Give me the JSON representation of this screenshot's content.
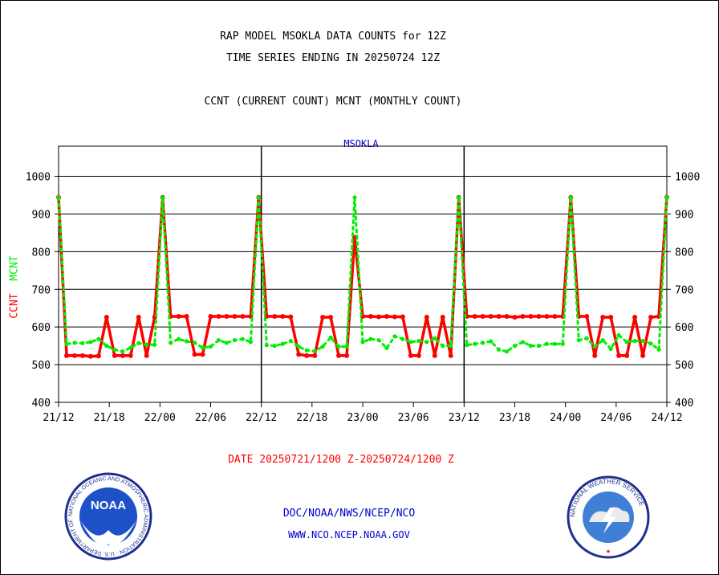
{
  "header": {
    "title_line1": "RAP MODEL MSOKLA DATA COUNTS for 12Z",
    "title_line2": "TIME SERIES ENDING IN 20250724 12Z",
    "subtitle": "CCNT (CURRENT COUNT) MCNT (MONTHLY COUNT)"
  },
  "footer": {
    "date_range": "DATE 20250721/1200 Z-20250724/1200 Z",
    "org_path": "DOC/NOAA/NWS/NCEP/NCO",
    "website": "WWW.NCO.NCEP.NOAA.GOV"
  },
  "logos": {
    "noaa_text": "NOAA",
    "noaa_ring_text": "NATIONAL OCEANIC AND ATMOSPHERIC ADMINISTRATION · U.S. DEPARTMENT OF COMMERCE",
    "nws_ring_text": "NATIONAL WEATHER SERVICE"
  },
  "colors": {
    "ccnt": "#ff0000",
    "mcnt": "#00ee00",
    "title_blue": "#0000cc",
    "grid": "#000000"
  },
  "chart_data": {
    "type": "line",
    "title": "MSOKLA",
    "ylabel_ccnt": "CCNT",
    "ylabel_mcnt": "MCNT",
    "ylim": [
      400,
      1080
    ],
    "yticks": [
      400,
      500,
      600,
      700,
      800,
      900,
      1000
    ],
    "x_tick_labels": [
      "21/12",
      "21/18",
      "22/00",
      "22/06",
      "22/12",
      "22/18",
      "23/00",
      "23/06",
      "23/12",
      "23/18",
      "24/00",
      "24/06",
      "24/12"
    ],
    "x_range_hours": [
      0,
      72
    ],
    "grid": true,
    "series": [
      {
        "name": "CCNT",
        "color": "#ff0000",
        "values": [
          944,
          524,
          524,
          524,
          522,
          523,
          626,
          524,
          524,
          524,
          626,
          524,
          626,
          944,
          628,
          628,
          628,
          527,
          527,
          628,
          628,
          628,
          628,
          628,
          628,
          944,
          628,
          628,
          628,
          627,
          527,
          524,
          524,
          626,
          626,
          524,
          524,
          838,
          628,
          628,
          627,
          628,
          627,
          627,
          524,
          524,
          626,
          524,
          626,
          524,
          944,
          628,
          628,
          628,
          628,
          628,
          628,
          626,
          628,
          628,
          628,
          628,
          628,
          628,
          944,
          628,
          628,
          524,
          626,
          626,
          524,
          524,
          626,
          524,
          626,
          628,
          944
        ]
      },
      {
        "name": "MCNT",
        "color": "#00ee00",
        "values": [
          944,
          555,
          558,
          557,
          560,
          568,
          550,
          540,
          535,
          545,
          557,
          553,
          553,
          944,
          558,
          568,
          562,
          558,
          545,
          548,
          565,
          558,
          565,
          568,
          560,
          944,
          552,
          550,
          555,
          563,
          548,
          538,
          536,
          548,
          572,
          548,
          548,
          944,
          560,
          568,
          565,
          544,
          575,
          568,
          560,
          563,
          560,
          570,
          550,
          550,
          944,
          552,
          555,
          558,
          562,
          540,
          535,
          550,
          560,
          550,
          550,
          555,
          555,
          555,
          944,
          565,
          570,
          548,
          565,
          542,
          578,
          560,
          563,
          563,
          556,
          540,
          944
        ]
      }
    ]
  }
}
